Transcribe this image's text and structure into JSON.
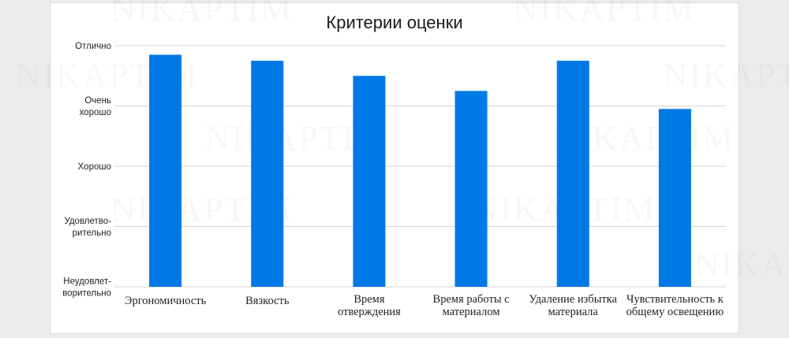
{
  "colors": {
    "bar": "#0078e6",
    "grid": "#d4d4d4",
    "background": "#ffffff",
    "page": "#ececec"
  },
  "watermark": {
    "text": "NIKAPTIM"
  },
  "chart_data": {
    "type": "bar",
    "title": "Критерии оценки",
    "xlabel": "",
    "ylabel": "",
    "ylim": [
      0,
      4
    ],
    "grid": true,
    "legend": "none",
    "y_ticks": [
      {
        "value": 0,
        "lines": [
          "Неудовлет-",
          "ворительно"
        ]
      },
      {
        "value": 1,
        "lines": [
          "Удовлетво-",
          "рительно"
        ]
      },
      {
        "value": 2,
        "lines": [
          "Хорошо"
        ]
      },
      {
        "value": 3,
        "lines": [
          "Очень",
          "хорошо"
        ]
      },
      {
        "value": 4,
        "lines": [
          "Отлично"
        ]
      }
    ],
    "categories": [
      {
        "name": "Эргономичность",
        "lines": [
          "Эргономичность"
        ]
      },
      {
        "name": "Вязкость",
        "lines": [
          "Вязкость"
        ]
      },
      {
        "name": "Время отверждения",
        "lines": [
          "Время",
          "отверждения"
        ]
      },
      {
        "name": "Время работы с материалом",
        "lines": [
          "Время работы с",
          "материалом"
        ]
      },
      {
        "name": "Удаление избытка материала",
        "lines": [
          "Удаление избытка",
          "материала"
        ]
      },
      {
        "name": "Чувствительность к общему освещению",
        "lines": [
          "Чувствительность к",
          "общему освещению"
        ]
      }
    ],
    "values": [
      3.85,
      3.75,
      3.5,
      3.25,
      3.75,
      2.95
    ]
  }
}
